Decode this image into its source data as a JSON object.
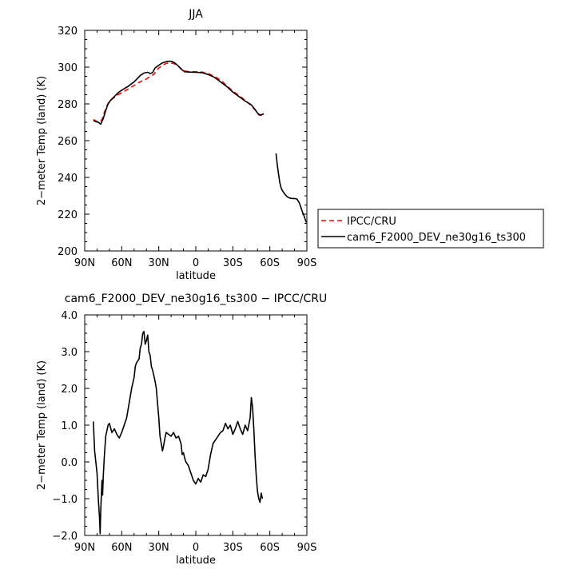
{
  "figure": {
    "top_title": "JJA",
    "bottom_title": "cam6_F2000_DEV_ne30g16_ts300 − IPCC/CRU"
  },
  "legend": {
    "entries": [
      {
        "label": "IPCC/CRU",
        "color": "#ff0000",
        "dash": "dashed"
      },
      {
        "label": "cam6_F2000_DEV_ne30g16_ts300",
        "color": "#000000",
        "dash": "solid"
      }
    ]
  },
  "chart_data": [
    {
      "type": "line",
      "title": "JJA",
      "xlabel": "latitude",
      "ylabel": "2−meter Temp (land) (K)",
      "xlim": [
        90,
        -90
      ],
      "ylim": [
        200,
        320
      ],
      "x_ticks": [
        90,
        60,
        30,
        0,
        -30,
        -60,
        -90
      ],
      "x_tick_labels": [
        "90N",
        "60N",
        "30N",
        "0",
        "30S",
        "60S",
        "90S"
      ],
      "y_ticks": [
        200,
        220,
        240,
        260,
        280,
        300,
        320
      ],
      "y_tick_labels": [
        "200",
        "220",
        "240",
        "260",
        "280",
        "300",
        "320"
      ],
      "legend_position": "right",
      "series": [
        {
          "name": "IPCC/CRU",
          "color": "#ff0000",
          "dash": "dashed",
          "segments": [
            [
              [
                83,
                271.5
              ],
              [
                80,
                270.5
              ],
              [
                78,
                270.2
              ],
              [
                76,
                271.5
              ],
              [
                74,
                275.5
              ],
              [
                72,
                279
              ],
              [
                70,
                281.5
              ],
              [
                67,
                283
              ],
              [
                63,
                285
              ],
              [
                60,
                286
              ],
              [
                55,
                288
              ],
              [
                50,
                290
              ],
              [
                45,
                292
              ],
              [
                40,
                293.5
              ],
              [
                37,
                295
              ],
              [
                34,
                296
              ],
              [
                32,
                298
              ],
              [
                30,
                299.5
              ],
              [
                27,
                301
              ],
              [
                24,
                302
              ],
              [
                21,
                302.3
              ],
              [
                18,
                302
              ],
              [
                15,
                301
              ],
              [
                12,
                299
              ],
              [
                10,
                298
              ],
              [
                5,
                297.5
              ],
              [
                0,
                297.5
              ],
              [
                -5,
                297.3
              ],
              [
                -10,
                296.5
              ],
              [
                -15,
                295
              ],
              [
                -20,
                293
              ],
              [
                -25,
                290
              ],
              [
                -30,
                287
              ],
              [
                -35,
                284.5
              ],
              [
                -40,
                282
              ],
              [
                -45,
                279
              ],
              [
                -49,
                276
              ],
              [
                -51,
                274
              ],
              [
                -53,
                273.8
              ],
              [
                -55,
                274.3
              ]
            ]
          ]
        },
        {
          "name": "cam6_F2000_DEV_ne30g16_ts300",
          "color": "#000000",
          "dash": "solid",
          "segments": [
            [
              [
                83,
                271
              ],
              [
                81,
                270.3
              ],
              [
                79,
                270
              ],
              [
                77,
                269
              ],
              [
                75,
                272
              ],
              [
                73,
                276.5
              ],
              [
                71,
                280
              ],
              [
                69,
                282
              ],
              [
                66,
                284
              ],
              [
                63,
                286
              ],
              [
                60,
                287.5
              ],
              [
                55,
                289.5
              ],
              [
                50,
                292
              ],
              [
                47,
                294
              ],
              [
                45,
                295.5
              ],
              [
                42,
                296.8
              ],
              [
                39,
                297.2
              ],
              [
                37,
                296.5
              ],
              [
                35,
                297
              ],
              [
                33,
                299.5
              ],
              [
                31,
                300.5
              ],
              [
                29,
                301.5
              ],
              [
                27,
                302.3
              ],
              [
                24,
                303
              ],
              [
                21,
                303.2
              ],
              [
                19,
                303
              ],
              [
                17,
                302.3
              ],
              [
                14,
                300.5
              ],
              [
                11,
                298.5
              ],
              [
                9,
                297.5
              ],
              [
                5,
                297.3
              ],
              [
                0,
                297.2
              ],
              [
                -5,
                297
              ],
              [
                -10,
                296
              ],
              [
                -15,
                294.5
              ],
              [
                -20,
                292
              ],
              [
                -25,
                289.5
              ],
              [
                -30,
                286.5
              ],
              [
                -35,
                284
              ],
              [
                -40,
                281.5
              ],
              [
                -45,
                279.5
              ],
              [
                -48,
                277
              ],
              [
                -50,
                275
              ],
              [
                -52,
                274
              ],
              [
                -54,
                274.2
              ],
              [
                -55,
                274.8
              ]
            ],
            [
              [
                -65,
                253
              ],
              [
                -66,
                247
              ],
              [
                -67,
                242
              ],
              [
                -68,
                237.5
              ],
              [
                -69,
                234.5
              ],
              [
                -70,
                233
              ],
              [
                -72,
                231
              ],
              [
                -74,
                229.5
              ],
              [
                -76,
                228.8
              ],
              [
                -78,
                228.5
              ],
              [
                -80,
                228.5
              ],
              [
                -82,
                228.2
              ],
              [
                -84,
                226
              ],
              [
                -86,
                222
              ],
              [
                -88,
                218.5
              ],
              [
                -89.5,
                215.5
              ]
            ]
          ]
        }
      ]
    },
    {
      "type": "line",
      "title": "cam6_F2000_DEV_ne30g16_ts300 − IPCC/CRU",
      "xlabel": "latitude",
      "ylabel": "2−meter Temp (land) (K)",
      "xlim": [
        90,
        -90
      ],
      "ylim": [
        -2.0,
        4.0
      ],
      "x_ticks": [
        90,
        60,
        30,
        0,
        -30,
        -60,
        -90
      ],
      "x_tick_labels": [
        "90N",
        "60N",
        "30N",
        "0",
        "30S",
        "60S",
        "90S"
      ],
      "y_ticks": [
        -2.0,
        -1.0,
        0.0,
        1.0,
        2.0,
        3.0,
        4.0
      ],
      "y_tick_labels": [
        "−2.0",
        "−1.0",
        "0.0",
        "1.0",
        "2.0",
        "3.0",
        "4.0"
      ],
      "series": [
        {
          "color": "#000000",
          "dash": "solid",
          "segments": [
            [
              [
                83,
                1.1
              ],
              [
                82,
                0.3
              ],
              [
                81,
                0.0
              ],
              [
                80,
                -0.3
              ],
              [
                79,
                -1.0
              ],
              [
                78,
                -1.5
              ],
              [
                77.5,
                -1.95
              ],
              [
                77,
                -1.3
              ],
              [
                76,
                -0.5
              ],
              [
                75.5,
                -0.9
              ],
              [
                75,
                -0.4
              ],
              [
                74,
                0.2
              ],
              [
                73,
                0.7
              ],
              [
                71,
                1.0
              ],
              [
                70,
                1.05
              ],
              [
                68,
                0.8
              ],
              [
                67,
                0.85
              ],
              [
                66,
                0.9
              ],
              [
                64,
                0.75
              ],
              [
                62,
                0.65
              ],
              [
                60,
                0.8
              ],
              [
                58,
                1.0
              ],
              [
                56,
                1.2
              ],
              [
                54,
                1.6
              ],
              [
                52,
                2.0
              ],
              [
                50,
                2.3
              ],
              [
                49,
                2.6
              ],
              [
                48,
                2.7
              ],
              [
                46,
                2.8
              ],
              [
                45,
                3.1
              ],
              [
                44,
                3.2
              ],
              [
                43,
                3.5
              ],
              [
                42,
                3.55
              ],
              [
                41,
                3.2
              ],
              [
                40,
                3.3
              ],
              [
                39,
                3.45
              ],
              [
                38,
                3.0
              ],
              [
                37,
                2.9
              ],
              [
                36,
                2.6
              ],
              [
                35,
                2.5
              ],
              [
                34,
                2.35
              ],
              [
                33,
                2.2
              ],
              [
                32,
                2.0
              ],
              [
                31,
                1.6
              ],
              [
                30,
                1.2
              ],
              [
                29,
                0.7
              ],
              [
                28,
                0.5
              ],
              [
                27,
                0.3
              ],
              [
                26,
                0.45
              ],
              [
                25,
                0.65
              ],
              [
                24,
                0.8
              ],
              [
                22,
                0.75
              ],
              [
                20,
                0.7
              ],
              [
                18,
                0.8
              ],
              [
                16,
                0.65
              ],
              [
                14,
                0.7
              ],
              [
                12,
                0.5
              ],
              [
                11,
                0.2
              ],
              [
                10,
                0.25
              ],
              [
                9,
                0.1
              ],
              [
                8,
                0.0
              ],
              [
                6,
                -0.1
              ],
              [
                4,
                -0.3
              ],
              [
                2,
                -0.5
              ],
              [
                0,
                -0.6
              ],
              [
                -2,
                -0.45
              ],
              [
                -4,
                -0.55
              ],
              [
                -6,
                -0.35
              ],
              [
                -8,
                -0.4
              ],
              [
                -10,
                -0.2
              ],
              [
                -12,
                0.2
              ],
              [
                -14,
                0.5
              ],
              [
                -16,
                0.6
              ],
              [
                -18,
                0.7
              ],
              [
                -20,
                0.8
              ],
              [
                -22,
                0.85
              ],
              [
                -24,
                1.05
              ],
              [
                -26,
                0.9
              ],
              [
                -28,
                1.0
              ],
              [
                -30,
                0.75
              ],
              [
                -32,
                0.9
              ],
              [
                -34,
                1.1
              ],
              [
                -36,
                0.9
              ],
              [
                -38,
                0.75
              ],
              [
                -40,
                1.0
              ],
              [
                -42,
                0.85
              ],
              [
                -44,
                1.2
              ],
              [
                -45,
                1.75
              ],
              [
                -46,
                1.5
              ],
              [
                -47,
                0.9
              ],
              [
                -48,
                0.2
              ],
              [
                -49,
                -0.4
              ],
              [
                -50,
                -0.8
              ],
              [
                -51,
                -1.0
              ],
              [
                -52,
                -1.1
              ],
              [
                -53,
                -0.85
              ],
              [
                -54,
                -1.0
              ]
            ]
          ]
        }
      ]
    }
  ]
}
